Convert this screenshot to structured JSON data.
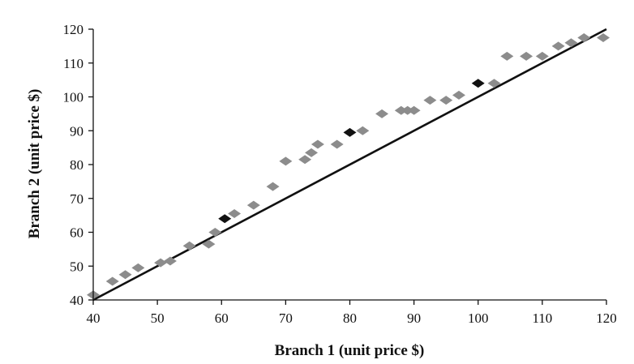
{
  "chart_data": {
    "type": "scatter",
    "title": "",
    "xlabel": "Branch 1 (unit price $)",
    "ylabel": "Branch 2 (unit price $)",
    "xlim": [
      40,
      120
    ],
    "ylim": [
      40,
      120
    ],
    "x_ticks": [
      40,
      50,
      60,
      70,
      80,
      90,
      100,
      110,
      120
    ],
    "y_ticks": [
      40,
      50,
      60,
      70,
      80,
      90,
      100,
      110,
      120
    ],
    "grid": false,
    "legend": "none",
    "marker": "diamond",
    "reference_line": {
      "from": [
        40,
        40
      ],
      "to": [
        120,
        120
      ],
      "color": "#111111"
    },
    "series": [
      {
        "color": "#8c8c8c",
        "points": [
          [
            40,
            41.5
          ],
          [
            43,
            45.5
          ],
          [
            45,
            47.5
          ],
          [
            47,
            49.5
          ],
          [
            50.5,
            51
          ],
          [
            52,
            51.5
          ],
          [
            55,
            56
          ],
          [
            58,
            56.5
          ],
          [
            59,
            60
          ],
          [
            62,
            65.5
          ],
          [
            65,
            68
          ],
          [
            68,
            73.5
          ],
          [
            70,
            81
          ],
          [
            73,
            81.5
          ],
          [
            74,
            83.5
          ],
          [
            75,
            86
          ],
          [
            78,
            86
          ],
          [
            82,
            90
          ],
          [
            85,
            95
          ],
          [
            88,
            96
          ],
          [
            89,
            96
          ],
          [
            90,
            96
          ],
          [
            92.5,
            99
          ],
          [
            95,
            99
          ],
          [
            97,
            100.5
          ],
          [
            102.5,
            104
          ],
          [
            104.5,
            112
          ],
          [
            107.5,
            112
          ],
          [
            110,
            112
          ],
          [
            112.5,
            115
          ],
          [
            114.5,
            116
          ],
          [
            116.5,
            117.5
          ],
          [
            119.5,
            117.5
          ]
        ]
      },
      {
        "color": "#111111",
        "points": [
          [
            60.5,
            64
          ],
          [
            80,
            89.5
          ],
          [
            100,
            104
          ]
        ]
      }
    ]
  }
}
